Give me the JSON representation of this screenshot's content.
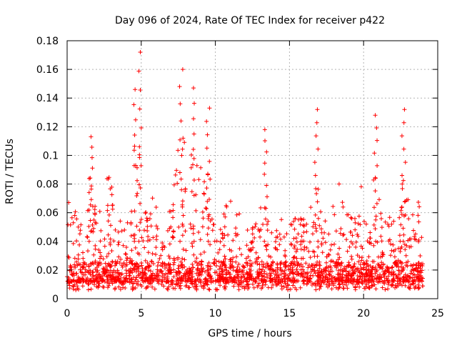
{
  "chart_data": {
    "type": "scatter",
    "title": "Day 096 of 2024, Rate Of TEC Index for receiver p422",
    "xlabel": "GPS time / hours",
    "ylabel": "ROTI / TECUs",
    "xlim": [
      0,
      25
    ],
    "ylim": [
      0,
      0.18
    ],
    "xticks": [
      0,
      5,
      10,
      15,
      20,
      25
    ],
    "xtick_labels": [
      "0",
      "5",
      "10",
      "15",
      "20",
      "25"
    ],
    "yticks": [
      0,
      0.02,
      0.04,
      0.06,
      0.08,
      0.1,
      0.12,
      0.14,
      0.16,
      0.18
    ],
    "ytick_labels": [
      "0",
      "0.02",
      "0.04",
      "0.06",
      "0.08",
      "0.1",
      "0.12",
      "0.14",
      "0.16",
      "0.18"
    ],
    "grid": true,
    "marker": "+",
    "series": [
      {
        "name": "ROTI",
        "color": "#ff0000",
        "x_range_hours": [
          0,
          24
        ],
        "baseline_roti": 0.012,
        "peaks": [
          {
            "x": 4.9,
            "y": 0.172
          },
          {
            "x": 4.6,
            "y": 0.146
          },
          {
            "x": 7.7,
            "y": 0.16
          },
          {
            "x": 8.6,
            "y": 0.147
          },
          {
            "x": 9.5,
            "y": 0.133
          },
          {
            "x": 16.8,
            "y": 0.132
          },
          {
            "x": 20.8,
            "y": 0.128
          },
          {
            "x": 22.7,
            "y": 0.132
          },
          {
            "x": 13.4,
            "y": 0.118
          },
          {
            "x": 1.6,
            "y": 0.113
          }
        ]
      }
    ]
  }
}
